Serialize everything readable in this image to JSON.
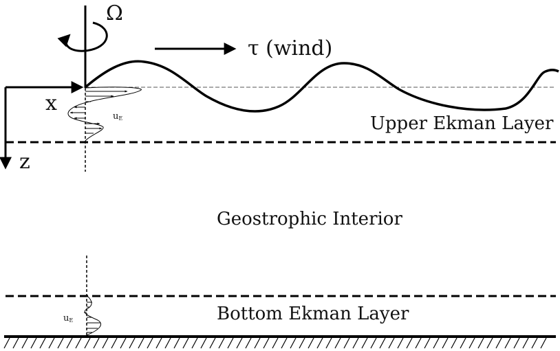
{
  "diagram": {
    "omega_label": "Ω",
    "wind_label": "τ (wind)",
    "x_axis_label": "x",
    "z_axis_label": "z",
    "upper_velocity_label": "u",
    "upper_velocity_sub": "E",
    "bottom_velocity_label": "u",
    "bottom_velocity_sub": "E",
    "upper_layer_label": "Upper Ekman Layer",
    "interior_label": "Geostrophic Interior",
    "bottom_layer_label": "Bottom Ekman Layer"
  }
}
